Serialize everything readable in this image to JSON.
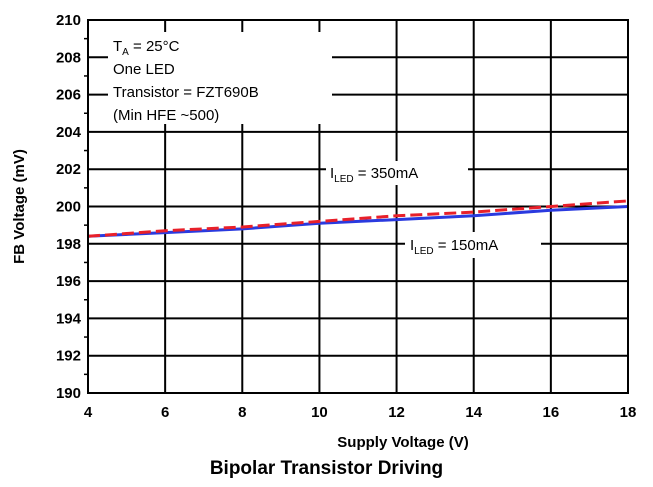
{
  "caption": "Bipolar Transistor Driving",
  "chart_data": {
    "type": "line",
    "xlabel": "Supply Voltage (V)",
    "ylabel": "FB Voltage (mV)",
    "xlim": [
      4,
      18
    ],
    "ylim": [
      190,
      210
    ],
    "xticks": [
      4,
      6,
      8,
      10,
      12,
      14,
      16,
      18
    ],
    "yticks": [
      190,
      192,
      194,
      196,
      198,
      200,
      202,
      204,
      206,
      208,
      210
    ],
    "grid": true,
    "conditions": [
      "25°C",
      "One LED",
      "Transistor = FZT690B",
      "(Min HFE ~500)"
    ],
    "series": [
      {
        "name": "350mA",
        "color": "#e8202a",
        "style": "dashed",
        "x": [
          4,
          6,
          8,
          10,
          12,
          14,
          16,
          18
        ],
        "y": [
          198.4,
          198.7,
          198.9,
          199.2,
          199.5,
          199.7,
          200.0,
          200.3
        ]
      },
      {
        "name": "150mA",
        "color": "#2a3adf",
        "style": "solid",
        "x": [
          4,
          6,
          8,
          10,
          12,
          14,
          16,
          18
        ],
        "y": [
          198.4,
          198.6,
          198.8,
          199.1,
          199.3,
          199.5,
          199.8,
          200.0
        ]
      }
    ],
    "annotations": [
      {
        "series": 0,
        "prefix": "I",
        "sub": "LED",
        "text": " = 350mA"
      },
      {
        "series": 1,
        "prefix": "I",
        "sub": "LED",
        "text": " = 150mA"
      }
    ]
  }
}
